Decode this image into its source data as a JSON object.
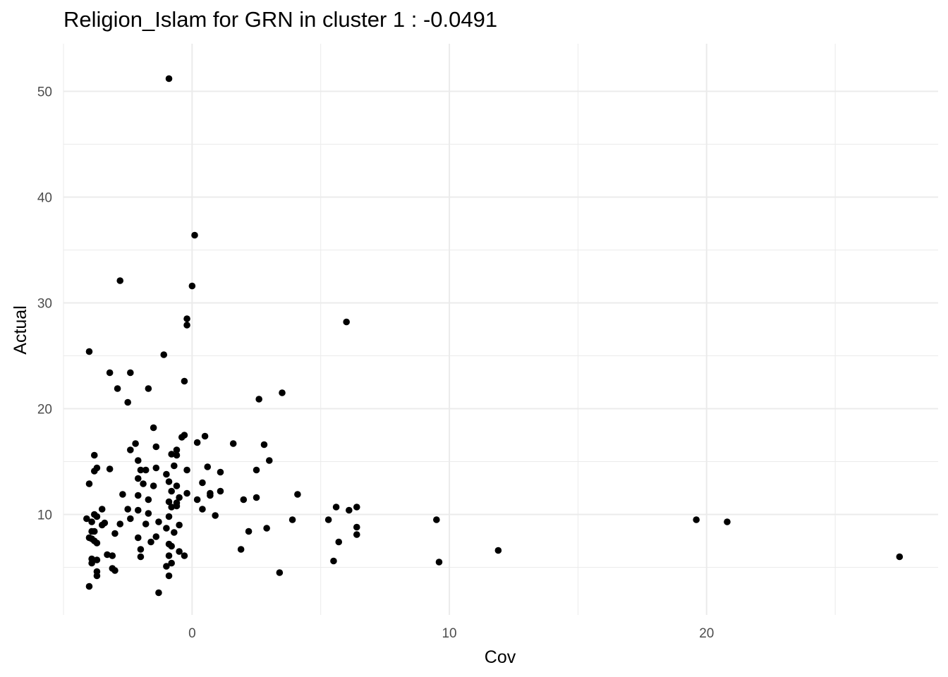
{
  "chart_data": {
    "type": "scatter",
    "title": "Religion_Islam for GRN in cluster 1 : -0.0491",
    "xlabel": "Cov",
    "ylabel": "Actual",
    "xlim": [
      -5,
      29
    ],
    "ylim": [
      0.5,
      54.5
    ],
    "x_ticks": [
      0,
      10,
      20
    ],
    "x_tick_labels": [
      "0",
      "10",
      "20"
    ],
    "x_minor_ticks": [
      -5,
      5,
      15,
      25
    ],
    "y_ticks": [
      10,
      20,
      30,
      40,
      50
    ],
    "y_tick_labels": [
      "10",
      "20",
      "30",
      "40",
      "50"
    ],
    "y_minor_ticks": [
      5,
      15,
      25,
      35,
      45
    ],
    "grid": true,
    "legend": "none",
    "point_color": "#000000",
    "grid_color": "#ebebeb",
    "points": [
      [
        -0.9,
        51.2
      ],
      [
        0.1,
        36.4
      ],
      [
        -2.8,
        32.1
      ],
      [
        0.0,
        31.6
      ],
      [
        -0.2,
        28.5
      ],
      [
        -0.2,
        27.9
      ],
      [
        6.0,
        28.2
      ],
      [
        -4.0,
        25.4
      ],
      [
        -1.1,
        25.1
      ],
      [
        -3.2,
        23.4
      ],
      [
        -2.4,
        23.4
      ],
      [
        -0.3,
        22.6
      ],
      [
        -2.9,
        21.9
      ],
      [
        -1.7,
        21.9
      ],
      [
        -2.5,
        20.6
      ],
      [
        3.5,
        21.5
      ],
      [
        2.6,
        20.9
      ],
      [
        -1.5,
        18.2
      ],
      [
        -0.3,
        17.5
      ],
      [
        -0.4,
        17.3
      ],
      [
        0.5,
        17.4
      ],
      [
        1.6,
        16.7
      ],
      [
        2.8,
        16.6
      ],
      [
        -2.2,
        16.7
      ],
      [
        0.2,
        16.8
      ],
      [
        -1.4,
        16.4
      ],
      [
        -2.4,
        16.1
      ],
      [
        -0.6,
        16.1
      ],
      [
        -0.8,
        15.7
      ],
      [
        -0.6,
        15.6
      ],
      [
        -3.8,
        15.6
      ],
      [
        -2.1,
        15.1
      ],
      [
        3.0,
        15.1
      ],
      [
        -0.7,
        14.6
      ],
      [
        0.6,
        14.5
      ],
      [
        -3.2,
        14.3
      ],
      [
        -1.4,
        14.4
      ],
      [
        -3.7,
        14.4
      ],
      [
        -3.8,
        14.1
      ],
      [
        -2.0,
        14.2
      ],
      [
        -1.8,
        14.2
      ],
      [
        -0.2,
        14.2
      ],
      [
        2.5,
        14.2
      ],
      [
        1.1,
        14.0
      ],
      [
        -1.0,
        13.8
      ],
      [
        -2.1,
        13.4
      ],
      [
        -0.9,
        13.1
      ],
      [
        0.4,
        13.0
      ],
      [
        -4.0,
        12.9
      ],
      [
        -1.9,
        12.9
      ],
      [
        -1.5,
        12.7
      ],
      [
        -0.6,
        12.7
      ],
      [
        -0.8,
        12.2
      ],
      [
        1.1,
        12.2
      ],
      [
        0.7,
        12.0
      ],
      [
        -0.2,
        12.0
      ],
      [
        4.1,
        11.9
      ],
      [
        -2.7,
        11.9
      ],
      [
        -2.1,
        11.8
      ],
      [
        0.7,
        11.8
      ],
      [
        2.5,
        11.6
      ],
      [
        -0.5,
        11.6
      ],
      [
        0.2,
        11.4
      ],
      [
        -1.7,
        11.4
      ],
      [
        2.0,
        11.4
      ],
      [
        -0.9,
        11.2
      ],
      [
        -0.6,
        11.1
      ],
      [
        -0.8,
        10.7
      ],
      [
        -0.6,
        10.8
      ],
      [
        5.6,
        10.7
      ],
      [
        6.4,
        10.7
      ],
      [
        6.1,
        10.4
      ],
      [
        -2.5,
        10.5
      ],
      [
        -2.1,
        10.4
      ],
      [
        -3.5,
        10.5
      ],
      [
        0.4,
        10.5
      ],
      [
        -1.7,
        10.1
      ],
      [
        -3.8,
        10.0
      ],
      [
        -3.7,
        9.8
      ],
      [
        0.9,
        9.9
      ],
      [
        -4.1,
        9.6
      ],
      [
        -2.4,
        9.6
      ],
      [
        -0.9,
        9.8
      ],
      [
        -3.9,
        9.3
      ],
      [
        3.9,
        9.5
      ],
      [
        5.3,
        9.5
      ],
      [
        9.5,
        9.5
      ],
      [
        19.6,
        9.5
      ],
      [
        20.8,
        9.3
      ],
      [
        -3.4,
        9.2
      ],
      [
        -2.8,
        9.1
      ],
      [
        -1.3,
        9.3
      ],
      [
        -1.8,
        9.1
      ],
      [
        -0.5,
        9.0
      ],
      [
        -3.5,
        9.0
      ],
      [
        -1.0,
        8.7
      ],
      [
        2.9,
        8.7
      ],
      [
        6.4,
        8.8
      ],
      [
        -3.9,
        8.4
      ],
      [
        -3.8,
        8.4
      ],
      [
        -0.7,
        8.3
      ],
      [
        -3.0,
        8.2
      ],
      [
        2.2,
        8.4
      ],
      [
        6.4,
        8.1
      ],
      [
        -4.0,
        7.8
      ],
      [
        -3.9,
        7.7
      ],
      [
        -2.1,
        7.8
      ],
      [
        -1.4,
        7.9
      ],
      [
        -3.8,
        7.5
      ],
      [
        -3.7,
        7.3
      ],
      [
        -1.6,
        7.4
      ],
      [
        -0.9,
        7.2
      ],
      [
        5.7,
        7.4
      ],
      [
        -0.8,
        7.0
      ],
      [
        -2.0,
        6.7
      ],
      [
        1.9,
        6.7
      ],
      [
        11.9,
        6.6
      ],
      [
        -0.5,
        6.5
      ],
      [
        -3.3,
        6.2
      ],
      [
        -3.1,
        6.1
      ],
      [
        -0.9,
        6.1
      ],
      [
        -2.0,
        6.0
      ],
      [
        -0.3,
        6.1
      ],
      [
        27.5,
        6.0
      ],
      [
        -3.9,
        5.8
      ],
      [
        -3.7,
        5.7
      ],
      [
        -0.8,
        5.4
      ],
      [
        -3.9,
        5.4
      ],
      [
        5.5,
        5.6
      ],
      [
        9.6,
        5.5
      ],
      [
        -1.0,
        5.1
      ],
      [
        -3.1,
        4.9
      ],
      [
        -3.0,
        4.7
      ],
      [
        -3.7,
        4.6
      ],
      [
        3.4,
        4.5
      ],
      [
        -0.9,
        4.2
      ],
      [
        -3.7,
        4.2
      ],
      [
        -4.0,
        3.2
      ],
      [
        -1.3,
        2.6
      ]
    ]
  }
}
